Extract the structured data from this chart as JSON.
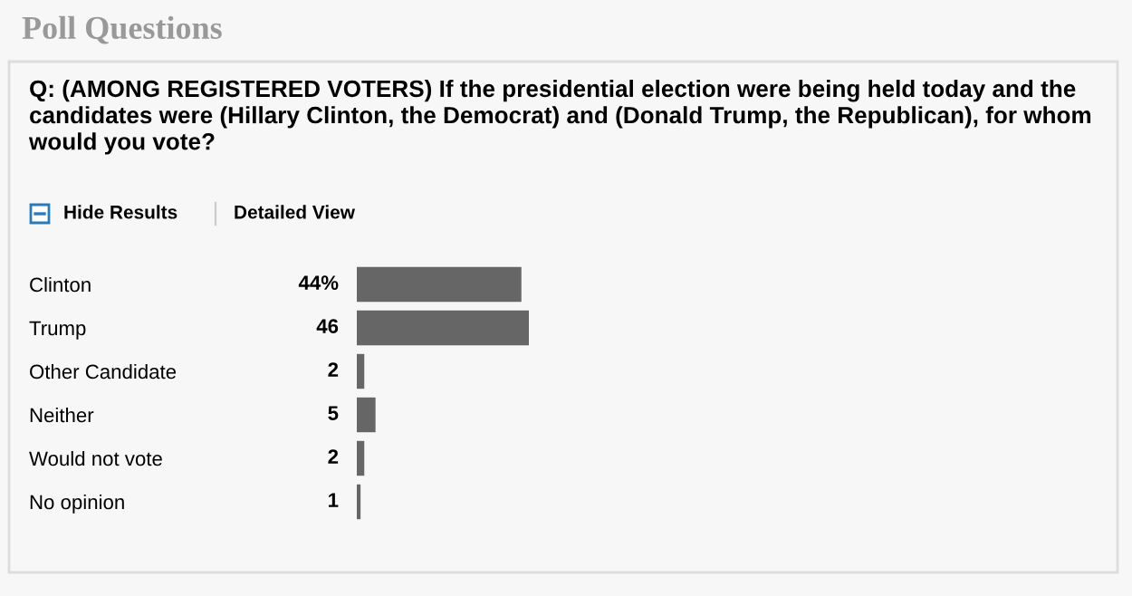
{
  "chart_data": {
    "type": "bar",
    "orientation": "horizontal",
    "title": "Poll Questions",
    "subtitle": "Q: (AMONG REGISTERED VOTERS) If the presidential election were being held today and the candidates were (Hillary Clinton, the Democrat) and (Donald Trump, the Republican), for whom would you vote?",
    "annotations": [
      "Hide Results",
      "Detailed View"
    ],
    "categories": [
      "Clinton",
      "Trump",
      "Other Candidate",
      "Neither",
      "Would not vote",
      "No opinion"
    ],
    "values": [
      44,
      46,
      2,
      5,
      2,
      1
    ],
    "value_labels": [
      "44%",
      "46",
      "2",
      "5",
      "2",
      "1"
    ],
    "color": "#666666"
  }
}
